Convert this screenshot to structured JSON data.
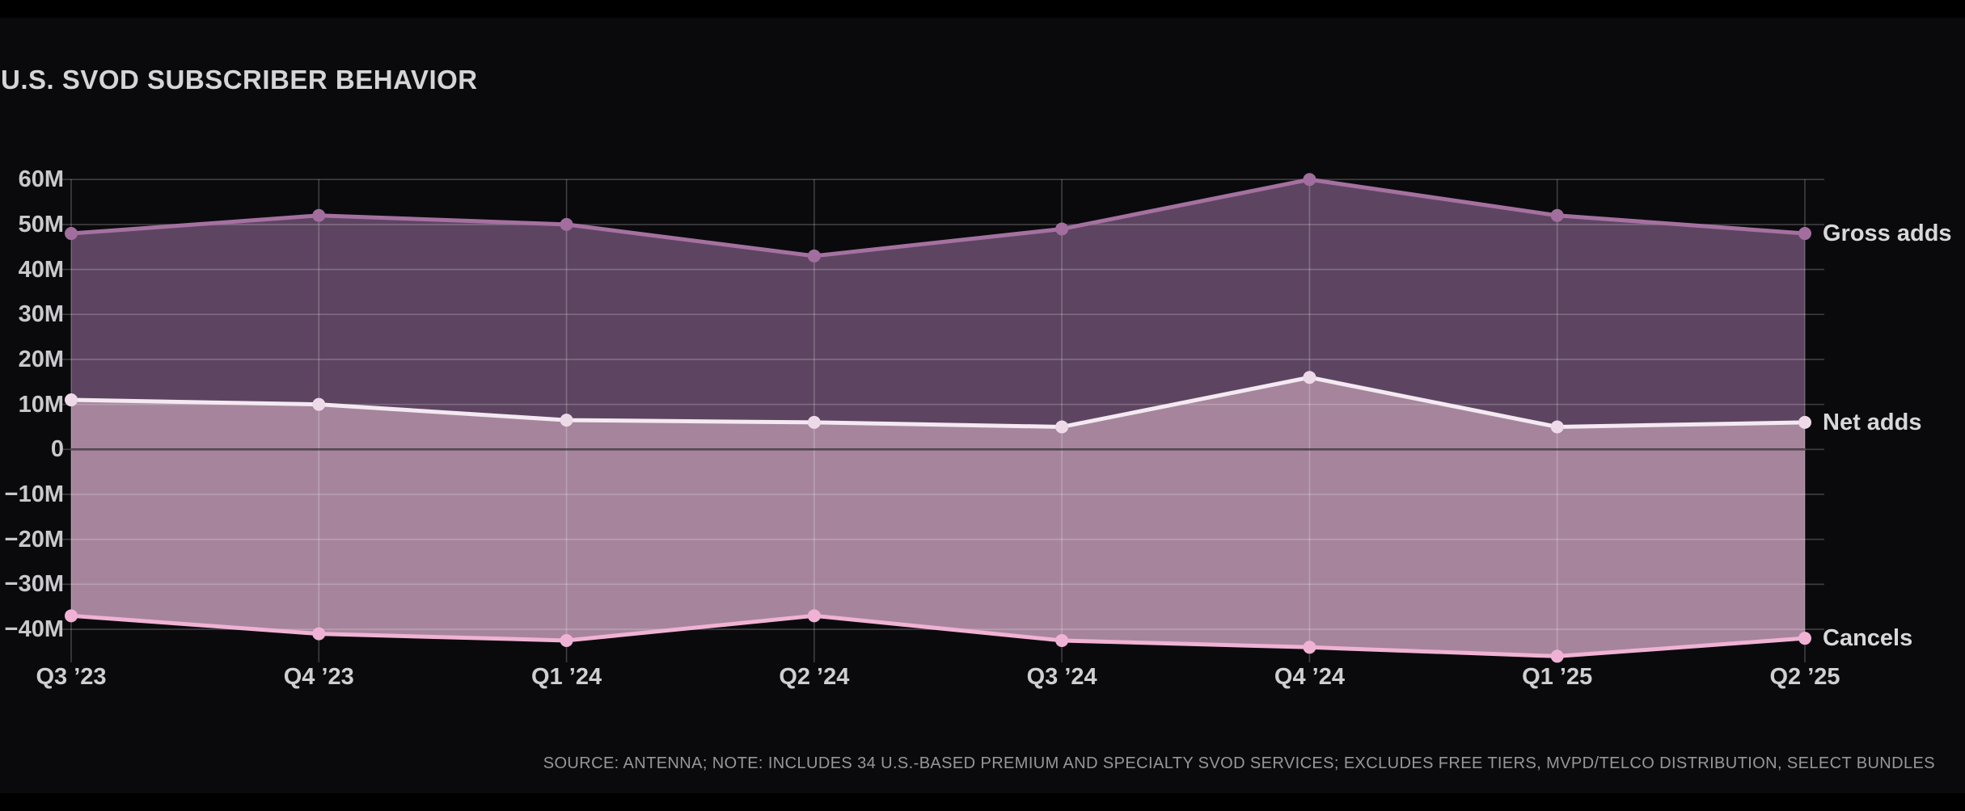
{
  "page": {
    "title": "U.S. SVOD SUBSCRIBER BEHAVIOR",
    "source_note": "SOURCE: ANTENNA; NOTE: INCLUDES 34 U.S.-BASED PREMIUM AND SPECIALTY SVOD SERVICES; EXCLUDES FREE TIERS, MVPD/TELCO DISTRIBUTION, SELECT BUNDLES"
  },
  "chart_data": {
    "type": "area",
    "title": "U.S. SVOD SUBSCRIBER BEHAVIOR",
    "unit": "M",
    "categories": [
      "Q3 ’23",
      "Q4 ’23",
      "Q1 ’24",
      "Q2 ’24",
      "Q3 ’24",
      "Q4 ’24",
      "Q1 ’25",
      "Q2 ’25"
    ],
    "series": [
      {
        "name": "Gross adds",
        "values": [
          48,
          52,
          50,
          43,
          49,
          60,
          52,
          48
        ],
        "line_color": "#a571a0",
        "dot_color": "#a26e9e"
      },
      {
        "name": "Net adds",
        "values": [
          11,
          10,
          6.5,
          6,
          5,
          16,
          5,
          6
        ],
        "line_color": "#f4e9f2",
        "dot_color": "#eed9e9"
      },
      {
        "name": "Cancels",
        "values": [
          -37,
          -41,
          -42.5,
          -37,
          -42.5,
          -44,
          -46,
          -42
        ],
        "line_color": "#f0b2d4",
        "dot_color": "#f0b2d4"
      }
    ],
    "bands": [
      {
        "between": [
          0,
          1
        ],
        "color": "#5d4561"
      },
      {
        "between": [
          1,
          2
        ],
        "color": "#a6859c"
      }
    ],
    "yticks": [
      {
        "value": 60,
        "label": "60M"
      },
      {
        "value": 50,
        "label": "50M"
      },
      {
        "value": 40,
        "label": "40M"
      },
      {
        "value": 30,
        "label": "30M"
      },
      {
        "value": 20,
        "label": "20M"
      },
      {
        "value": 10,
        "label": "10M"
      },
      {
        "value": 0,
        "label": "0"
      },
      {
        "value": -10,
        "label": "−10M"
      },
      {
        "value": -20,
        "label": "−20M"
      },
      {
        "value": -30,
        "label": "−30M"
      },
      {
        "value": -40,
        "label": "−40M"
      }
    ],
    "ylim": [
      -46.2,
      60
    ],
    "grid": true,
    "legend_position": "right-edge-labels",
    "colors": {
      "background": "#0a0a0d",
      "letterbox": "#000000",
      "grid": "rgba(255,255,255,0.22)",
      "zero_line": "rgba(5,5,8,0.55)",
      "axis_text": "#c9c9cd",
      "title_text": "#d5d5d7",
      "source_text": "#96969b"
    }
  }
}
